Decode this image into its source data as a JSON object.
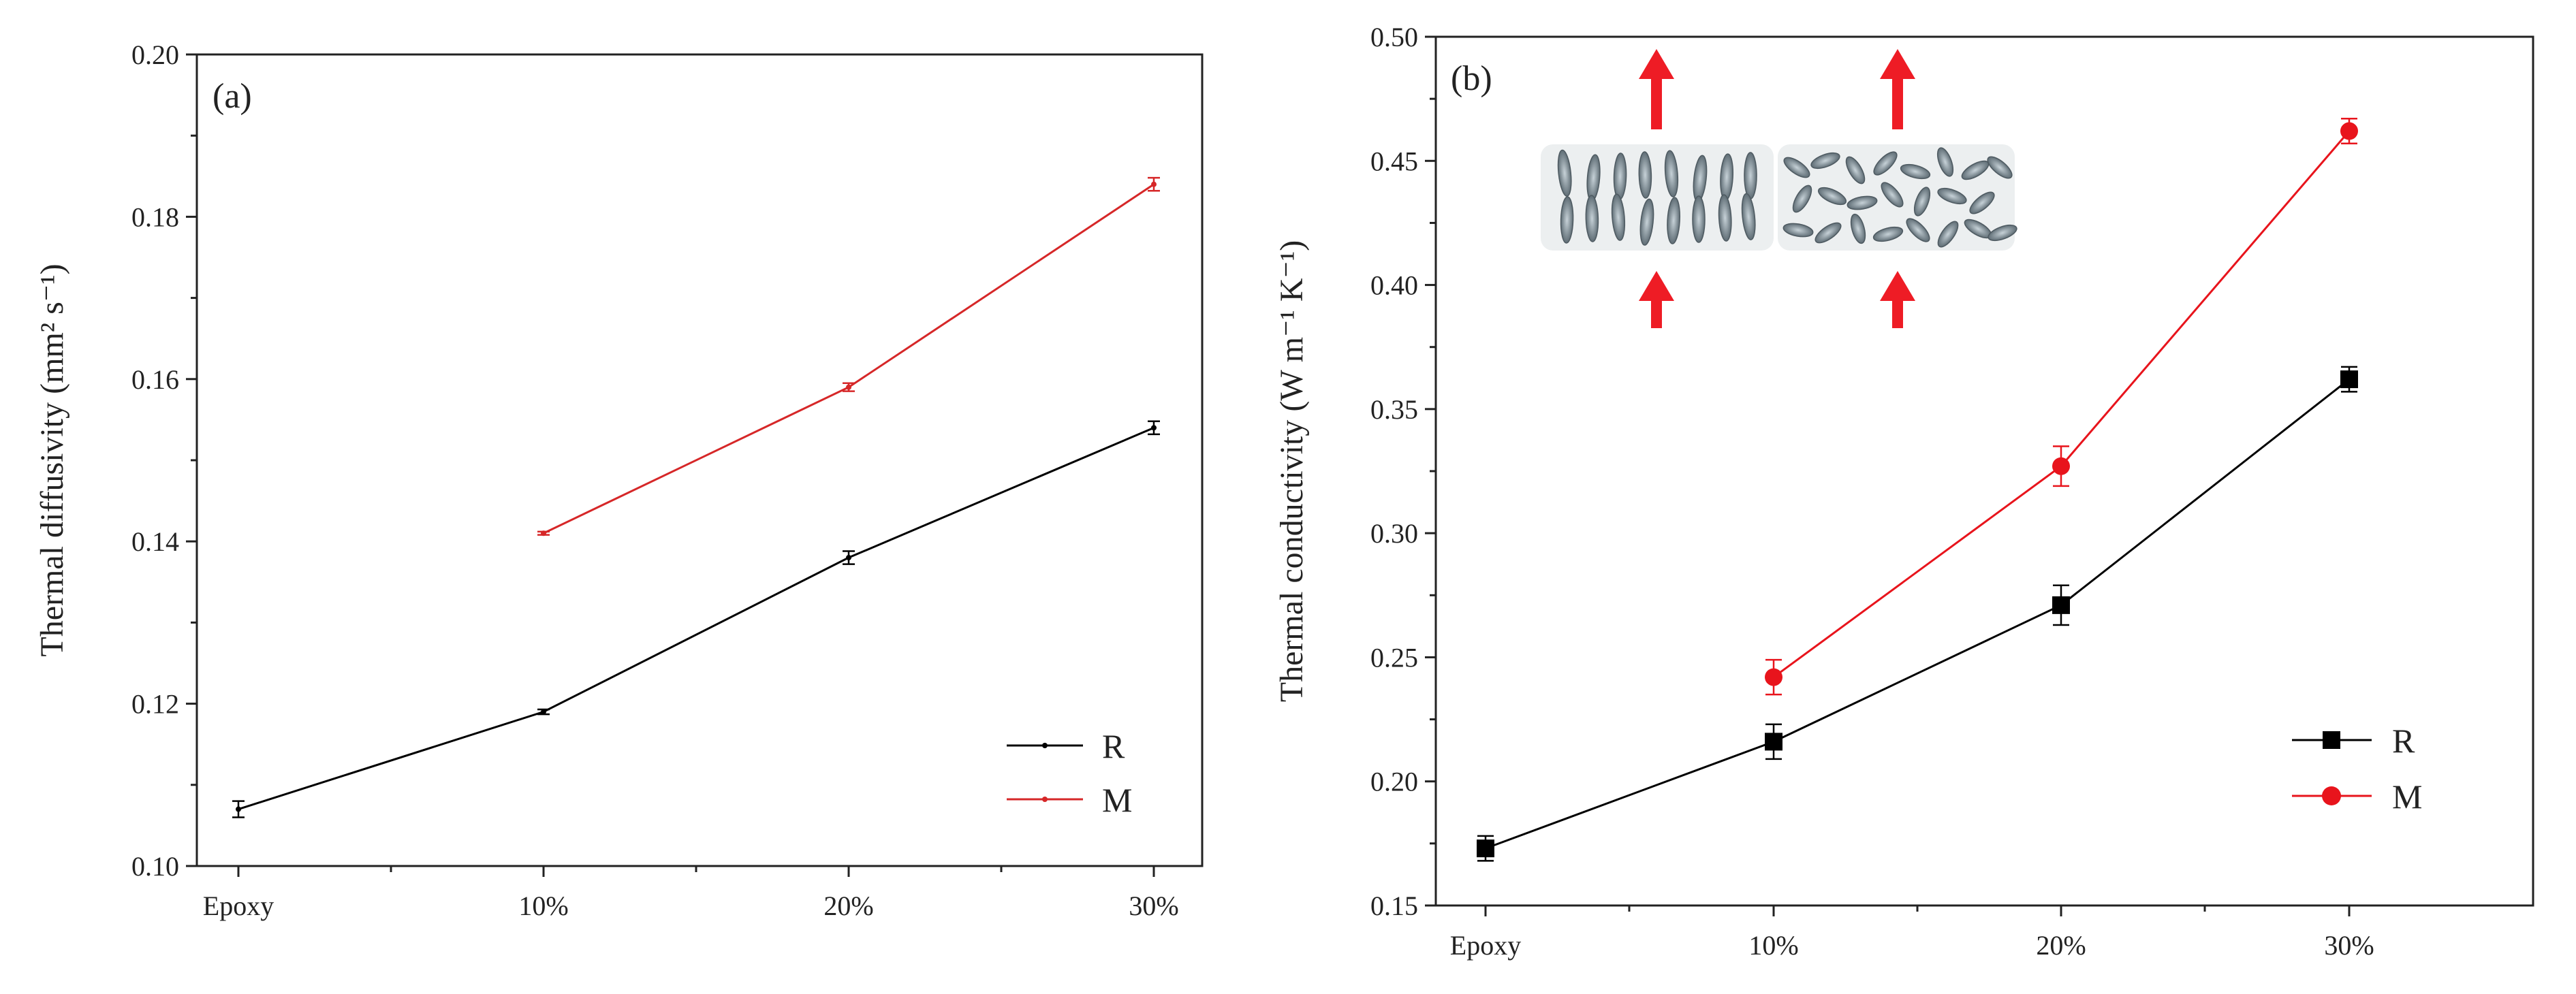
{
  "chart_data": [
    {
      "type": "line",
      "panel_label": "(a)",
      "title": "",
      "xlabel": "",
      "ylabel": "Thermal diffusivity (mm² s⁻¹)",
      "categories": [
        "Epoxy",
        "10%",
        "20%",
        "30%"
      ],
      "ylim": [
        0.1,
        0.2
      ],
      "yticks": [
        0.1,
        0.12,
        0.14,
        0.16,
        0.18,
        0.2
      ],
      "ytick_labels": [
        "0.10",
        "0.12",
        "0.14",
        "0.16",
        "0.18",
        "0.20"
      ],
      "grid": false,
      "legend_position": "bottom-right",
      "series": [
        {
          "name": "R",
          "color": "#000000",
          "marker": "small-dot",
          "values": [
            0.107,
            0.119,
            0.138,
            0.154
          ],
          "errors": [
            0.001,
            0.0003,
            0.0008,
            0.0008
          ]
        },
        {
          "name": "M",
          "color": "#d62728",
          "marker": "small-dot",
          "values": [
            null,
            0.141,
            0.159,
            0.184
          ],
          "errors": [
            null,
            0.0002,
            0.0005,
            0.0008
          ]
        }
      ]
    },
    {
      "type": "line",
      "panel_label": "(b)",
      "title": "",
      "xlabel": "",
      "ylabel": "Thermal conductivity (W m⁻¹ K⁻¹)",
      "categories": [
        "Epoxy",
        "10%",
        "20%",
        "30%"
      ],
      "ylim": [
        0.15,
        0.5
      ],
      "yticks": [
        0.15,
        0.2,
        0.25,
        0.3,
        0.35,
        0.4,
        0.45,
        0.5
      ],
      "ytick_labels": [
        "0.15",
        "0.20",
        "0.25",
        "0.30",
        "0.35",
        "0.40",
        "0.45",
        "0.50"
      ],
      "grid": false,
      "legend_position": "bottom-right",
      "inset": "flake alignment schematic with heat-flow arrows (aligned vs. random)",
      "series": [
        {
          "name": "R",
          "color": "#000000",
          "marker": "square",
          "values": [
            0.173,
            0.216,
            0.271,
            0.362
          ],
          "errors": [
            0.005,
            0.007,
            0.008,
            0.005
          ]
        },
        {
          "name": "M",
          "color": "#e8141c",
          "marker": "circle",
          "values": [
            null,
            0.242,
            0.327,
            0.462
          ],
          "errors": [
            null,
            0.007,
            0.008,
            0.005
          ]
        }
      ]
    }
  ]
}
